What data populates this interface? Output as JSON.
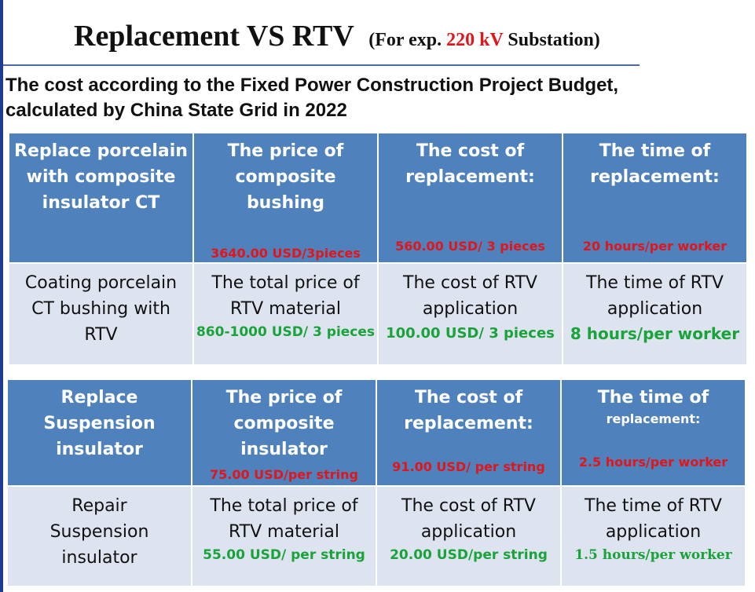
{
  "title": {
    "main": "Replacement VS RTV",
    "sub_prefix": "(For exp.",
    "sub_highlight": "220 kV",
    "sub_suffix": "Substation)"
  },
  "subtitle": {
    "line1": "The cost according to the Fixed Power Construction Project Budget,",
    "line2": "calculated by China State Grid in 2022"
  },
  "table1": {
    "header": {
      "c1": [
        "Replace porcelain",
        "with composite",
        "insulator CT"
      ],
      "c2": [
        "The price of",
        "composite",
        "bushing"
      ],
      "c2_value": "3640.00 USD/3pieces",
      "c3": [
        "The cost of",
        "replacement:"
      ],
      "c3_value": "560.00 USD/ 3 pieces",
      "c4": [
        "The  time of",
        "replacement:"
      ],
      "c4_value": "20 hours/per worker"
    },
    "body": {
      "c1": [
        "Coating porcelain",
        "CT bushing with",
        "RTV"
      ],
      "c2": [
        "The total price of",
        "RTV material"
      ],
      "c2_value": "860-1000 USD/ 3 pieces",
      "c3": [
        "The cost of RTV",
        "application"
      ],
      "c3_value": "100.00 USD/ 3 pieces",
      "c4": [
        "The  time of RTV",
        "application"
      ],
      "c4_value": "8 hours/per worker"
    }
  },
  "table2": {
    "header": {
      "c1": [
        "Replace",
        "Suspension",
        "insulator"
      ],
      "c2": [
        "The price of",
        "composite",
        "insulator"
      ],
      "c2_value": "75.00 USD/per string",
      "c3": [
        "The cost of",
        "replacement:"
      ],
      "c3_value": "91.00 USD/ per string",
      "c4": [
        "The  time of",
        "replacement:"
      ],
      "c4_value": "2.5 hours/per worker"
    },
    "body": {
      "c1": [
        "Repair",
        "Suspension",
        "insulator"
      ],
      "c2": [
        "The total price of",
        "RTV material"
      ],
      "c2_value": "55.00 USD/ per string",
      "c3": [
        "The cost of RTV",
        "application"
      ],
      "c3_value": "20.00 USD/per string",
      "c4": [
        "The  time of RTV",
        "application"
      ],
      "c4_value": "1.5 hours/per worker"
    }
  },
  "colors": {
    "header_bg": "#4f81bd",
    "body_bg": "#dde3ef",
    "red": "#e0161b",
    "green": "#1aa33a"
  }
}
